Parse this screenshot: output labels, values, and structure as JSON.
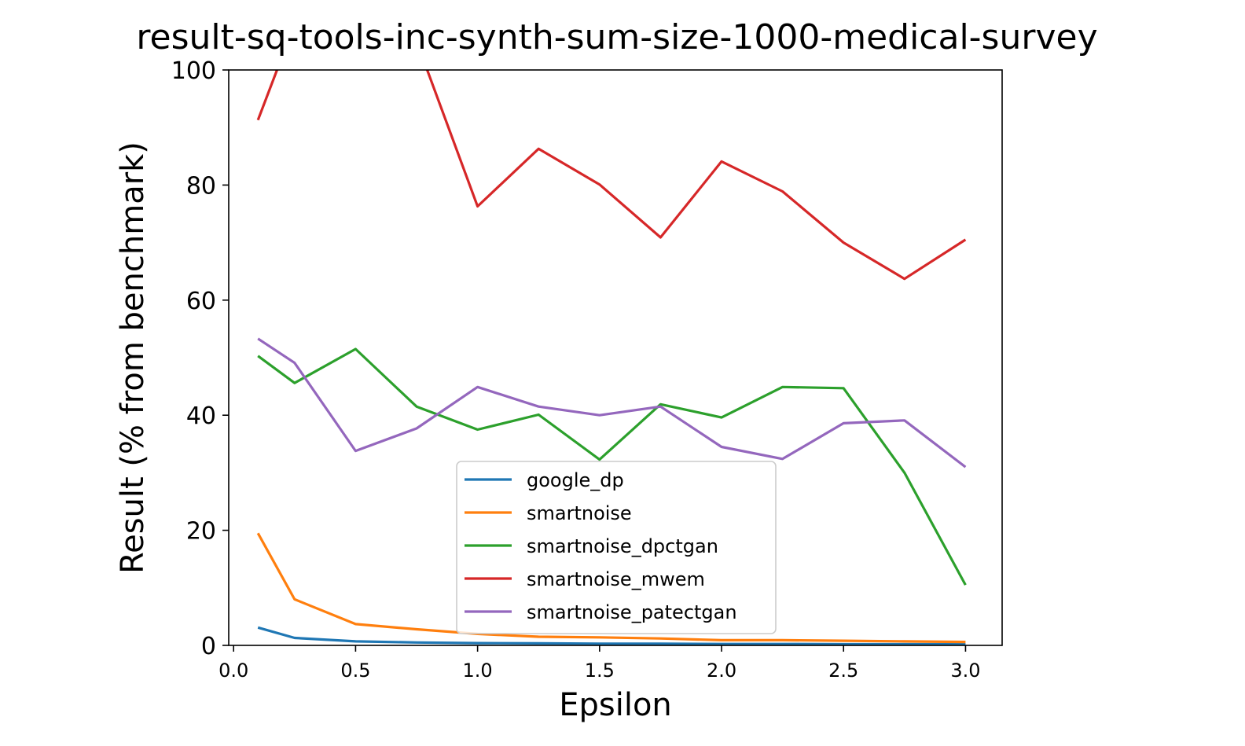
{
  "chart_data": {
    "type": "line",
    "title": "result-sq-tools-inc-synth-sum-size-1000-medical-survey",
    "xlabel": "Epsilon",
    "ylabel": "Result (% from benchmark)",
    "xlim": [
      -0.02,
      3.15
    ],
    "ylim": [
      0,
      100
    ],
    "xticks": [
      {
        "value": 0.0,
        "label": "0.0"
      },
      {
        "value": 0.5,
        "label": "0.5"
      },
      {
        "value": 1.0,
        "label": "1.0"
      },
      {
        "value": 1.5,
        "label": "1.5"
      },
      {
        "value": 2.0,
        "label": "2.0"
      },
      {
        "value": 2.5,
        "label": "2.5"
      },
      {
        "value": 3.0,
        "label": "3.0"
      }
    ],
    "yticks": [
      {
        "value": 0,
        "label": "0"
      },
      {
        "value": 20,
        "label": "20"
      },
      {
        "value": 40,
        "label": "40"
      },
      {
        "value": 60,
        "label": "60"
      },
      {
        "value": 80,
        "label": "80"
      },
      {
        "value": 100,
        "label": "100"
      }
    ],
    "x": [
      0.1,
      0.25,
      0.5,
      0.75,
      1.0,
      1.25,
      1.5,
      1.75,
      2.0,
      2.25,
      2.5,
      2.75,
      3.0
    ],
    "grid": false,
    "legend_position": "lower-center",
    "series": [
      {
        "name": "google_dp",
        "color": "#1f77b4",
        "values": [
          3.1,
          1.3,
          0.7,
          0.5,
          0.4,
          0.35,
          0.3,
          0.3,
          0.25,
          0.25,
          0.2,
          0.2,
          0.2
        ]
      },
      {
        "name": "smartnoise",
        "color": "#ff7f0e",
        "values": [
          19.5,
          8.0,
          3.7,
          2.8,
          2.0,
          1.5,
          1.4,
          1.2,
          0.9,
          0.9,
          0.8,
          0.7,
          0.6
        ]
      },
      {
        "name": "smartnoise_dpctgan",
        "color": "#2ca02c",
        "values": [
          50.3,
          45.6,
          51.5,
          41.5,
          37.5,
          40.1,
          32.3,
          41.9,
          39.6,
          44.9,
          44.7,
          30.0,
          10.5
        ]
      },
      {
        "name": "smartnoise_mwem",
        "color": "#d62728",
        "values": [
          91.3,
          108.0,
          118.0,
          105.0,
          76.3,
          86.3,
          80.1,
          70.9,
          84.1,
          78.9,
          70.0,
          63.7,
          70.5
        ]
      },
      {
        "name": "smartnoise_patectgan",
        "color": "#9467bd",
        "values": [
          53.3,
          49.1,
          33.8,
          37.7,
          44.9,
          41.5,
          40.0,
          41.5,
          34.5,
          32.4,
          38.6,
          39.1,
          31.0
        ]
      }
    ]
  }
}
